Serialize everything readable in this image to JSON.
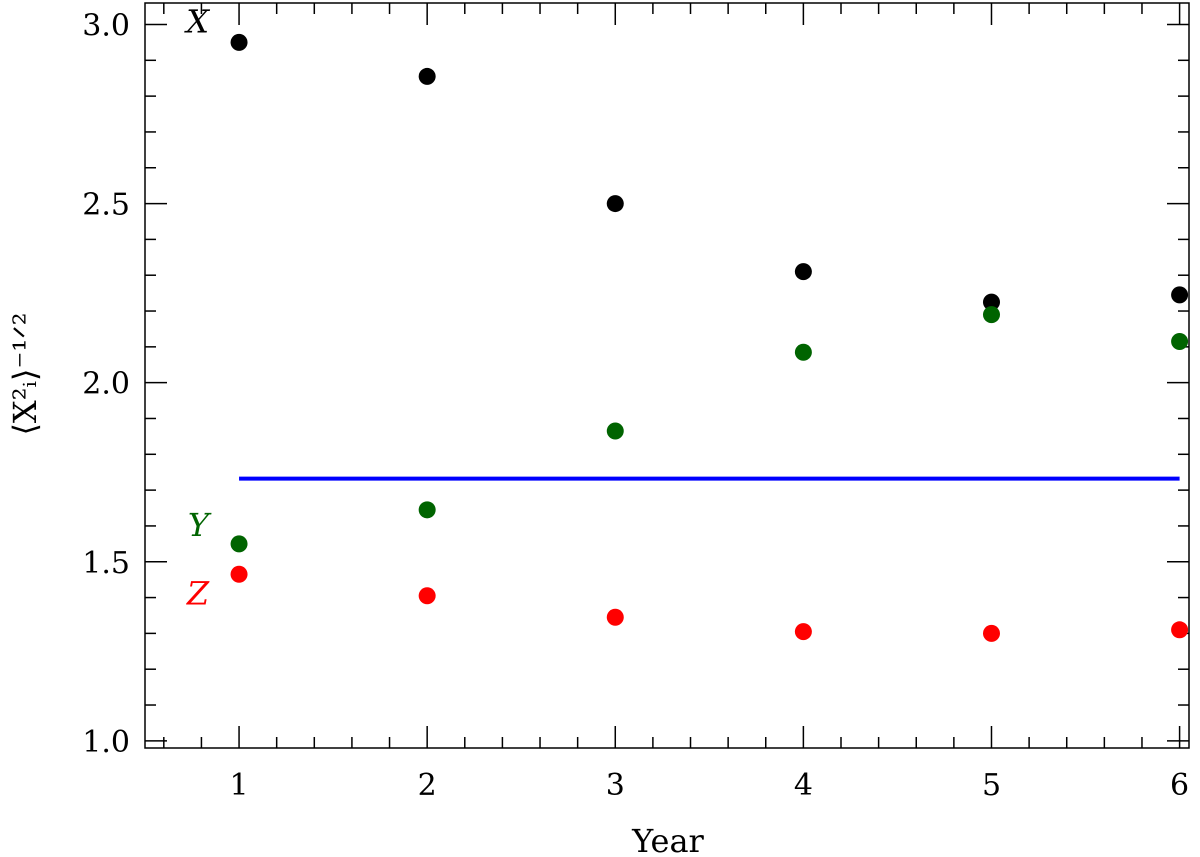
{
  "chart_data": {
    "type": "scatter",
    "title": "",
    "xlabel": "Year",
    "ylabel": "⟨X²ᵢ⟩⁻¹ᐟ²",
    "xlim": [
      0.5,
      6.05
    ],
    "ylim": [
      0.98,
      3.06
    ],
    "x_ticks": [
      1,
      2,
      3,
      4,
      5,
      6
    ],
    "x_tick_labels": [
      "1",
      "2",
      "3",
      "4",
      "5",
      "6"
    ],
    "y_ticks": [
      1.0,
      1.5,
      2.0,
      2.5,
      3.0
    ],
    "y_tick_labels": [
      "1.0",
      "1.5",
      "2.0",
      "2.5",
      "3.0"
    ],
    "grid": false,
    "series": [
      {
        "name": "X",
        "color": "#000000",
        "x": [
          1,
          2,
          3,
          4,
          5,
          6
        ],
        "y": [
          2.95,
          2.855,
          2.5,
          2.31,
          2.225,
          2.245
        ]
      },
      {
        "name": "Y",
        "color": "#006400",
        "x": [
          1,
          2,
          3,
          4,
          5,
          6
        ],
        "y": [
          1.55,
          1.645,
          1.865,
          2.085,
          2.19,
          2.115
        ]
      },
      {
        "name": "Z",
        "color": "#ff0000",
        "x": [
          1,
          2,
          3,
          4,
          5,
          6
        ],
        "y": [
          1.465,
          1.405,
          1.345,
          1.305,
          1.3,
          1.31
        ]
      }
    ],
    "reference_line": {
      "color": "#0000ff",
      "y": 1.732,
      "x": [
        1,
        6
      ]
    }
  }
}
